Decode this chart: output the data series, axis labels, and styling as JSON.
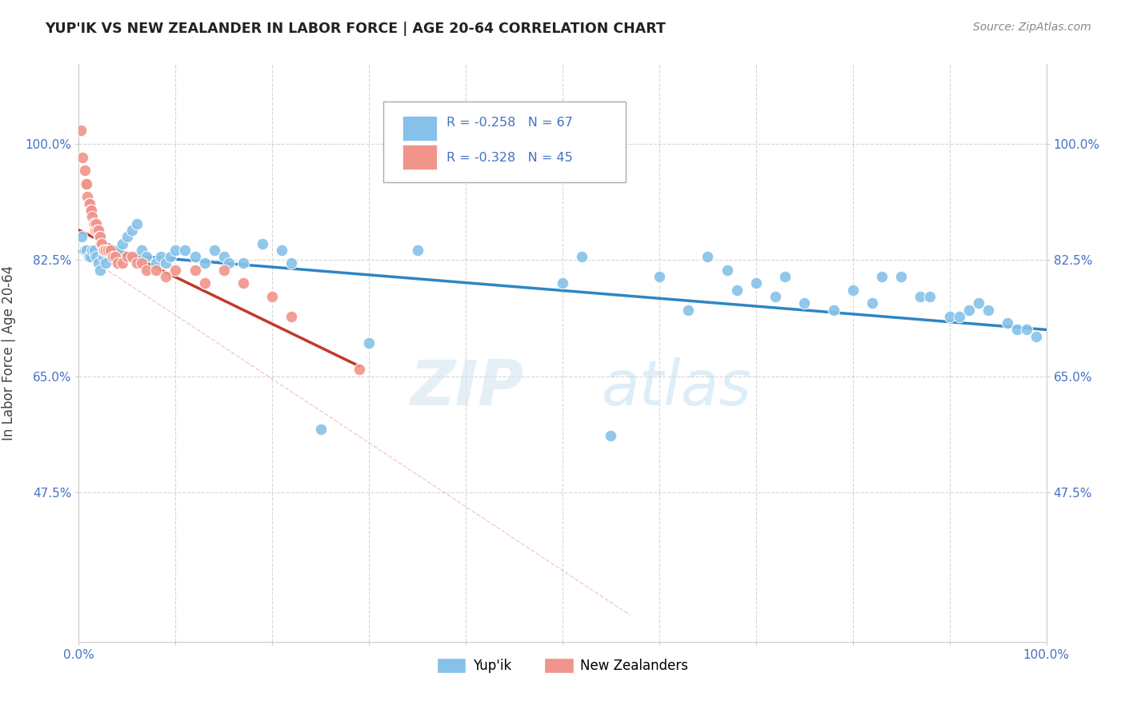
{
  "title": "YUP'IK VS NEW ZEALANDER IN LABOR FORCE | AGE 20-64 CORRELATION CHART",
  "source": "Source: ZipAtlas.com",
  "ylabel": "In Labor Force | Age 20-64",
  "xlim": [
    0.0,
    1.0
  ],
  "ylim": [
    0.25,
    1.12
  ],
  "yticks": [
    0.475,
    0.65,
    0.825,
    1.0
  ],
  "ytick_labels": [
    "47.5%",
    "65.0%",
    "82.5%",
    "100.0%"
  ],
  "xticks": [
    0.0,
    0.1,
    0.2,
    0.3,
    0.4,
    0.5,
    0.6,
    0.7,
    0.8,
    0.9,
    1.0
  ],
  "xtick_labels": [
    "0.0%",
    "",
    "",
    "",
    "",
    "",
    "",
    "",
    "",
    "",
    "100.0%"
  ],
  "watermark_zip": "ZIP",
  "watermark_atlas": "atlas",
  "legend_blue_r": "R = -0.258",
  "legend_blue_n": "N = 67",
  "legend_pink_r": "R = -0.328",
  "legend_pink_n": "N = 45",
  "blue_color": "#85c1e9",
  "pink_color": "#f1948a",
  "trendline_blue_color": "#2e86c1",
  "trendline_pink_color": "#c0392b",
  "trendline_dashed_color": "#f1948a",
  "blue_scatter_x": [
    0.003,
    0.006,
    0.008,
    0.01,
    0.012,
    0.014,
    0.016,
    0.018,
    0.02,
    0.022,
    0.025,
    0.028,
    0.03,
    0.035,
    0.04,
    0.045,
    0.05,
    0.055,
    0.06,
    0.065,
    0.07,
    0.08,
    0.085,
    0.09,
    0.095,
    0.1,
    0.11,
    0.12,
    0.13,
    0.14,
    0.15,
    0.155,
    0.17,
    0.19,
    0.21,
    0.22,
    0.25,
    0.3,
    0.35,
    0.5,
    0.52,
    0.55,
    0.6,
    0.63,
    0.65,
    0.67,
    0.68,
    0.7,
    0.72,
    0.73,
    0.75,
    0.78,
    0.8,
    0.82,
    0.83,
    0.85,
    0.87,
    0.88,
    0.9,
    0.91,
    0.92,
    0.93,
    0.94,
    0.96,
    0.97,
    0.98,
    0.99
  ],
  "blue_scatter_y": [
    0.86,
    0.84,
    0.84,
    0.83,
    0.83,
    0.84,
    0.84,
    0.83,
    0.82,
    0.81,
    0.83,
    0.82,
    0.84,
    0.83,
    0.84,
    0.85,
    0.86,
    0.87,
    0.88,
    0.84,
    0.83,
    0.82,
    0.83,
    0.82,
    0.83,
    0.84,
    0.84,
    0.83,
    0.82,
    0.84,
    0.83,
    0.82,
    0.82,
    0.85,
    0.84,
    0.82,
    0.57,
    0.7,
    0.84,
    0.79,
    0.83,
    0.56,
    0.8,
    0.75,
    0.83,
    0.81,
    0.78,
    0.79,
    0.77,
    0.8,
    0.76,
    0.75,
    0.78,
    0.76,
    0.8,
    0.8,
    0.77,
    0.77,
    0.74,
    0.74,
    0.75,
    0.76,
    0.75,
    0.73,
    0.72,
    0.72,
    0.71
  ],
  "pink_scatter_x": [
    0.002,
    0.004,
    0.006,
    0.007,
    0.008,
    0.009,
    0.01,
    0.011,
    0.012,
    0.013,
    0.014,
    0.015,
    0.016,
    0.017,
    0.018,
    0.019,
    0.02,
    0.021,
    0.022,
    0.023,
    0.024,
    0.025,
    0.026,
    0.028,
    0.03,
    0.033,
    0.035,
    0.038,
    0.04,
    0.045,
    0.05,
    0.055,
    0.06,
    0.065,
    0.07,
    0.08,
    0.09,
    0.1,
    0.12,
    0.13,
    0.15,
    0.17,
    0.2,
    0.22,
    0.29
  ],
  "pink_scatter_y": [
    1.02,
    0.98,
    0.96,
    0.94,
    0.94,
    0.92,
    0.91,
    0.91,
    0.9,
    0.9,
    0.89,
    0.88,
    0.88,
    0.87,
    0.88,
    0.87,
    0.87,
    0.86,
    0.86,
    0.85,
    0.85,
    0.84,
    0.84,
    0.84,
    0.84,
    0.84,
    0.83,
    0.83,
    0.82,
    0.82,
    0.83,
    0.83,
    0.82,
    0.82,
    0.81,
    0.81,
    0.8,
    0.81,
    0.81,
    0.79,
    0.81,
    0.79,
    0.77,
    0.74,
    0.66
  ],
  "blue_trendline_x": [
    0.0,
    1.0
  ],
  "blue_trendline_y": [
    0.838,
    0.72
  ],
  "pink_trendline_x": [
    0.0,
    0.29
  ],
  "pink_trendline_y": [
    0.87,
    0.665
  ],
  "dashed_trendline_x": [
    0.0,
    0.57
  ],
  "dashed_trendline_y": [
    0.838,
    0.29
  ]
}
